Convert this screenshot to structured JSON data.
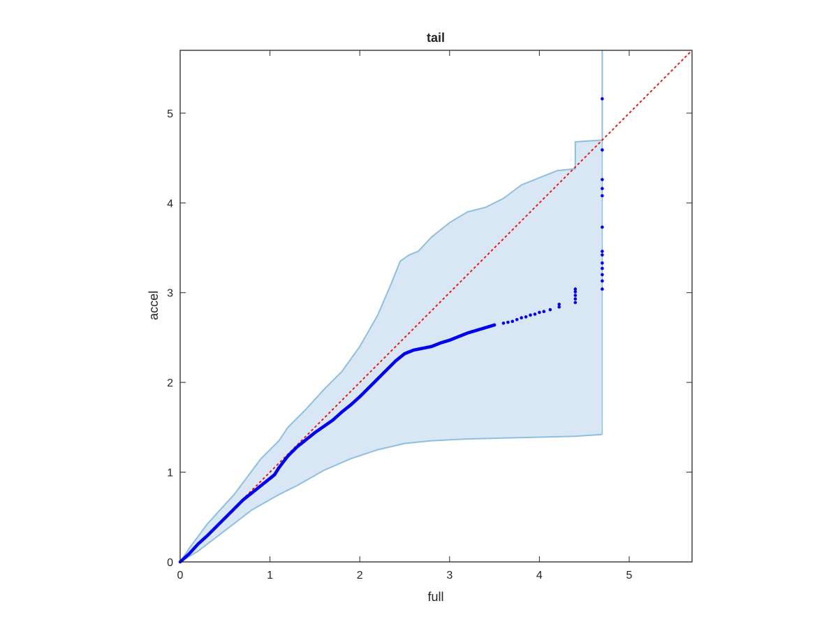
{
  "chart_data": {
    "type": "scatter",
    "title": "tail",
    "xlabel": "full",
    "ylabel": "accel",
    "xlim": [
      0,
      5.7
    ],
    "ylim": [
      0,
      5.7
    ],
    "xticks": [
      "0",
      "1",
      "2",
      "3",
      "4",
      "5"
    ],
    "yticks": [
      "0",
      "1",
      "2",
      "3",
      "4",
      "5"
    ],
    "grid": false,
    "colors": {
      "points": "#0000ee",
      "band_fill": "#d8e7f3",
      "band_edge": "#8ebfe0",
      "reference": "#e31a1c",
      "axes": "#262626"
    },
    "reference_line": {
      "style": "dotted",
      "from": [
        0,
        0
      ],
      "to": [
        5.7,
        5.7
      ]
    },
    "band": {
      "upper": [
        [
          0,
          0
        ],
        [
          0.1,
          0.15
        ],
        [
          0.3,
          0.42
        ],
        [
          0.6,
          0.75
        ],
        [
          0.9,
          1.15
        ],
        [
          1.1,
          1.35
        ],
        [
          1.2,
          1.5
        ],
        [
          1.4,
          1.7
        ],
        [
          1.6,
          1.92
        ],
        [
          1.8,
          2.12
        ],
        [
          2.0,
          2.4
        ],
        [
          2.2,
          2.75
        ],
        [
          2.35,
          3.1
        ],
        [
          2.45,
          3.35
        ],
        [
          2.55,
          3.42
        ],
        [
          2.65,
          3.46
        ],
        [
          2.8,
          3.62
        ],
        [
          3.0,
          3.78
        ],
        [
          3.2,
          3.9
        ],
        [
          3.4,
          3.95
        ],
        [
          3.6,
          4.05
        ],
        [
          3.8,
          4.2
        ],
        [
          4.0,
          4.28
        ],
        [
          4.2,
          4.36
        ],
        [
          4.4,
          4.38
        ],
        [
          4.4,
          4.68
        ],
        [
          4.7,
          4.7
        ],
        [
          4.7,
          5.7
        ]
      ],
      "lower": [
        [
          0,
          0
        ],
        [
          0.2,
          0.12
        ],
        [
          0.5,
          0.35
        ],
        [
          0.8,
          0.58
        ],
        [
          1.1,
          0.75
        ],
        [
          1.3,
          0.85
        ],
        [
          1.6,
          1.02
        ],
        [
          1.9,
          1.15
        ],
        [
          2.2,
          1.25
        ],
        [
          2.5,
          1.32
        ],
        [
          2.8,
          1.35
        ],
        [
          3.2,
          1.37
        ],
        [
          3.6,
          1.38
        ],
        [
          4.0,
          1.39
        ],
        [
          4.4,
          1.4
        ],
        [
          4.7,
          1.42
        ]
      ]
    },
    "curve": [
      [
        0,
        0
      ],
      [
        0.1,
        0.09
      ],
      [
        0.2,
        0.2
      ],
      [
        0.3,
        0.29
      ],
      [
        0.4,
        0.39
      ],
      [
        0.5,
        0.49
      ],
      [
        0.6,
        0.59
      ],
      [
        0.7,
        0.69
      ],
      [
        0.8,
        0.77
      ],
      [
        0.9,
        0.85
      ],
      [
        1.0,
        0.93
      ],
      [
        1.05,
        0.97
      ],
      [
        1.1,
        1.05
      ],
      [
        1.2,
        1.18
      ],
      [
        1.3,
        1.28
      ],
      [
        1.4,
        1.36
      ],
      [
        1.5,
        1.44
      ],
      [
        1.6,
        1.51
      ],
      [
        1.7,
        1.58
      ],
      [
        1.8,
        1.67
      ],
      [
        1.9,
        1.75
      ],
      [
        2.0,
        1.84
      ],
      [
        2.1,
        1.94
      ],
      [
        2.2,
        2.04
      ],
      [
        2.3,
        2.14
      ],
      [
        2.4,
        2.24
      ],
      [
        2.5,
        2.32
      ],
      [
        2.6,
        2.36
      ],
      [
        2.7,
        2.38
      ],
      [
        2.8,
        2.4
      ],
      [
        2.9,
        2.44
      ],
      [
        3.0,
        2.47
      ],
      [
        3.1,
        2.51
      ],
      [
        3.2,
        2.55
      ],
      [
        3.3,
        2.58
      ],
      [
        3.4,
        2.61
      ],
      [
        3.5,
        2.64
      ]
    ],
    "tail_points": [
      [
        3.6,
        2.66
      ],
      [
        3.65,
        2.67
      ],
      [
        3.7,
        2.68
      ],
      [
        3.75,
        2.7
      ],
      [
        3.8,
        2.72
      ],
      [
        3.85,
        2.73
      ],
      [
        3.9,
        2.75
      ],
      [
        3.95,
        2.76
      ],
      [
        4.0,
        2.78
      ],
      [
        4.05,
        2.79
      ],
      [
        4.12,
        2.81
      ],
      [
        4.22,
        2.84
      ],
      [
        4.22,
        2.87
      ],
      [
        4.4,
        2.89
      ],
      [
        4.4,
        2.93
      ],
      [
        4.4,
        2.97
      ],
      [
        4.4,
        3.01
      ],
      [
        4.4,
        3.04
      ],
      [
        4.7,
        3.04
      ],
      [
        4.7,
        3.13
      ],
      [
        4.7,
        3.2
      ],
      [
        4.7,
        3.27
      ],
      [
        4.7,
        3.33
      ],
      [
        4.7,
        3.42
      ],
      [
        4.7,
        3.46
      ],
      [
        4.7,
        3.73
      ],
      [
        4.7,
        4.08
      ],
      [
        4.7,
        4.16
      ],
      [
        4.7,
        4.26
      ],
      [
        4.7,
        4.59
      ],
      [
        4.7,
        5.16
      ]
    ]
  }
}
